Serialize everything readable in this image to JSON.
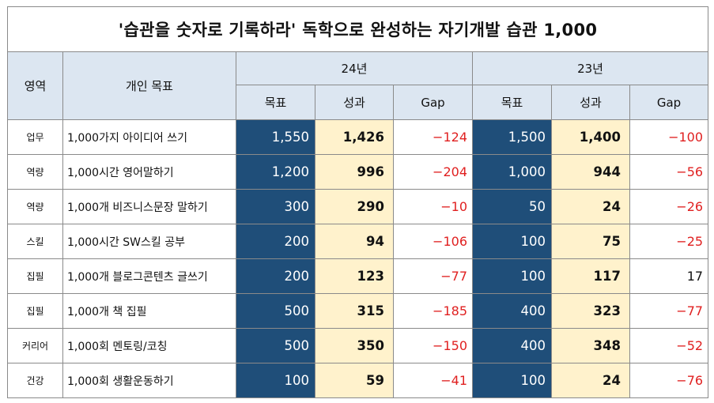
{
  "title": "'습관을 숫자로 기록하라'     독학으로 완성하는 자기개발 습관 1,000",
  "header": {
    "area": "영역",
    "goal": "개인 목표",
    "years": [
      "24년",
      "23년"
    ],
    "cols": [
      "목표",
      "성과",
      "Gap"
    ]
  },
  "rows": [
    {
      "area": "업무",
      "goal": "1,000가지 아이디어 쓰기",
      "y24": {
        "target": "1,550",
        "result": "1,426",
        "gap": "−124"
      },
      "y23": {
        "target": "1,500",
        "result": "1,400",
        "gap": "−100"
      }
    },
    {
      "area": "역량",
      "goal": "1,000시간 영어말하기",
      "y24": {
        "target": "1,200",
        "result": "996",
        "gap": "−204"
      },
      "y23": {
        "target": "1,000",
        "result": "944",
        "gap": "−56"
      }
    },
    {
      "area": "역량",
      "goal": "1,000개 비즈니스문장 말하기",
      "y24": {
        "target": "300",
        "result": "290",
        "gap": "−10"
      },
      "y23": {
        "target": "50",
        "result": "24",
        "gap": "−26"
      }
    },
    {
      "area": "스킬",
      "goal": "1,000시간 SW스킬 공부",
      "y24": {
        "target": "200",
        "result": "94",
        "gap": "−106"
      },
      "y23": {
        "target": "100",
        "result": "75",
        "gap": "−25"
      }
    },
    {
      "area": "집필",
      "goal": "1,000개 블로그콘텐츠 글쓰기",
      "y24": {
        "target": "200",
        "result": "123",
        "gap": "−77"
      },
      "y23": {
        "target": "100",
        "result": "117",
        "gap": "17"
      }
    },
    {
      "area": "집필",
      "goal": "1,000개 책 집필",
      "y24": {
        "target": "500",
        "result": "315",
        "gap": "−185"
      },
      "y23": {
        "target": "400",
        "result": "323",
        "gap": "−77"
      }
    },
    {
      "area": "커리어",
      "goal": "1,000회 멘토링/코칭",
      "y24": {
        "target": "500",
        "result": "350",
        "gap": "−150"
      },
      "y23": {
        "target": "400",
        "result": "348",
        "gap": "−52"
      }
    },
    {
      "area": "건강",
      "goal": "1,000회 생활운동하기",
      "y24": {
        "target": "100",
        "result": "59",
        "gap": "−41"
      },
      "y23": {
        "target": "100",
        "result": "24",
        "gap": "−76"
      }
    }
  ],
  "colors": {
    "header_bg": "#dce6f1",
    "target_bg": "#1f4e79",
    "result_bg": "#fff2cc",
    "negative_gap": "#e02020"
  }
}
